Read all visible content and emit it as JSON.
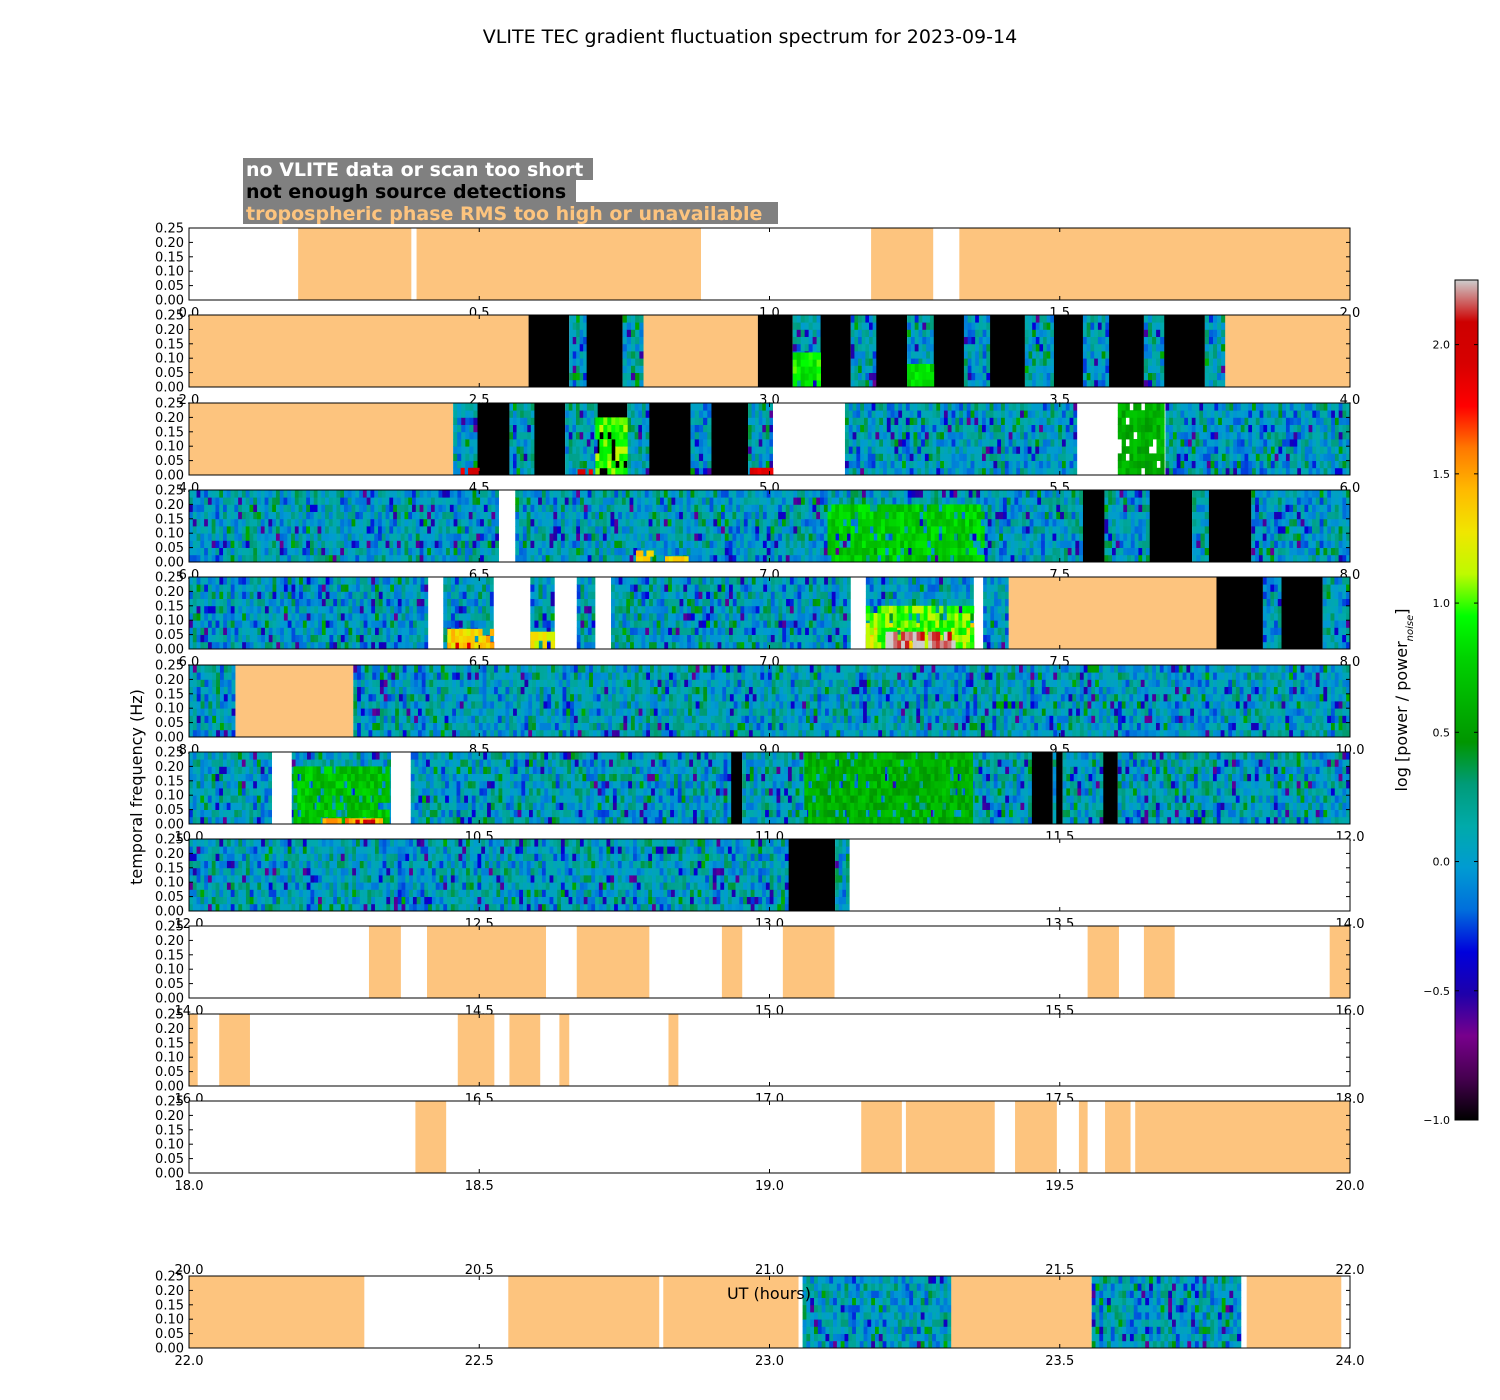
{
  "chart_data": {
    "type": "heatmap",
    "title": "VLITE TEC gradient fluctuation spectrum for 2023-09-14",
    "xlabel": "UT (hours)",
    "ylabel": "temporal frequency (Hz)",
    "colorbar_label": "log [power / power",
    "colorbar_label_sub": "noise",
    "colorbar_label_end": "]",
    "colorbar_range": [
      -1.0,
      2.25
    ],
    "colorbar_ticks": [
      "2.0",
      "1.5",
      "1.0",
      "0.5",
      "0.0",
      "−0.5",
      "−1.0"
    ],
    "colorbar_tick_values": [
      2.0,
      1.5,
      1.0,
      0.5,
      0.0,
      -0.5,
      -1.0
    ],
    "colormap": "nipy_spectral",
    "ylim": [
      0,
      0.25
    ],
    "y_ticks": [
      "0.00",
      "0.05",
      "0.10",
      "0.15",
      "0.20",
      "0.25"
    ],
    "y_tick_values": [
      0,
      0.05,
      0.1,
      0.15,
      0.2,
      0.25
    ],
    "legend": [
      {
        "text": "no VLITE data or scan too short",
        "color": "#ffffff"
      },
      {
        "text": "not enough source detections",
        "color": "#000000"
      },
      {
        "text": "tropospheric phase RMS too high or unavailable",
        "color": "#fdc47e"
      }
    ],
    "flag_colors": {
      "nodata": "#ffffff",
      "nodet": "#000000",
      "tropo": "#fdc47e"
    },
    "panels": [
      {
        "xlim": [
          0,
          2
        ],
        "x_ticks": [
          "0.0",
          "0.5",
          "1.0",
          "1.5",
          "2.0"
        ],
        "segments": [
          [
            "tropo",
            0.188,
            0.383
          ],
          [
            "tropo",
            0.392,
            0.882
          ],
          [
            "tropo",
            1.175,
            1.282
          ],
          [
            "tropo",
            1.327,
            2.0
          ]
        ]
      },
      {
        "xlim": [
          2,
          4
        ],
        "x_ticks": [
          "2.0",
          "2.5",
          "3.0",
          "3.5",
          "4.0"
        ],
        "segments": [
          [
            "tropo",
            2.0,
            2.585
          ],
          [
            "nodet",
            2.585,
            2.655
          ],
          [
            "spec",
            2.655,
            2.685
          ],
          [
            "nodet",
            2.685,
            2.747
          ],
          [
            "spec",
            2.747,
            2.783
          ],
          [
            "tropo",
            2.783,
            2.98
          ],
          [
            "nodet",
            2.98,
            3.04
          ],
          [
            "spec",
            3.04,
            3.088
          ],
          [
            "nodet",
            3.088,
            3.14
          ],
          [
            "spec",
            3.14,
            3.184
          ],
          [
            "nodet",
            3.184,
            3.237
          ],
          [
            "spec",
            3.237,
            3.283
          ],
          [
            "nodet",
            3.283,
            3.335
          ],
          [
            "spec",
            3.335,
            3.38
          ],
          [
            "nodet",
            3.38,
            3.44
          ],
          [
            "spec",
            3.44,
            3.49
          ],
          [
            "nodet",
            3.49,
            3.54
          ],
          [
            "spec",
            3.54,
            3.585
          ],
          [
            "nodet",
            3.585,
            3.645
          ],
          [
            "spec",
            3.645,
            3.68
          ],
          [
            "nodet",
            3.68,
            3.75
          ],
          [
            "spec",
            3.75,
            3.785
          ],
          [
            "tropo",
            3.785,
            4.0
          ]
        ]
      },
      {
        "xlim": [
          4,
          6
        ],
        "x_ticks": [
          "4.0",
          "4.5",
          "5.0",
          "5.5",
          "6.0"
        ],
        "segments": [
          [
            "tropo",
            4.0,
            4.455
          ],
          [
            "spec",
            4.455,
            4.497
          ],
          [
            "nodet",
            4.497,
            4.552
          ],
          [
            "spec",
            4.552,
            4.595
          ],
          [
            "nodet",
            4.595,
            4.648
          ],
          [
            "spec",
            4.648,
            4.704
          ],
          [
            "nodet",
            4.704,
            4.755
          ],
          [
            "spec",
            4.755,
            4.793
          ],
          [
            "nodet",
            4.793,
            4.864
          ],
          [
            "spec",
            4.864,
            4.9
          ],
          [
            "nodet",
            4.9,
            4.963
          ],
          [
            "spec",
            4.963,
            5.006
          ],
          [
            "nodata",
            5.006,
            5.13
          ],
          [
            "spec",
            5.13,
            5.53
          ],
          [
            "nodata",
            5.53,
            5.682
          ],
          [
            "spec",
            5.682,
            6.0
          ]
        ]
      },
      {
        "xlim": [
          6,
          8
        ],
        "x_ticks": [
          "6.0",
          "6.5",
          "7.0",
          "7.5",
          "8.0"
        ],
        "segments": [
          [
            "spec",
            6.0,
            6.534
          ],
          [
            "nodata",
            6.534,
            6.562
          ],
          [
            "spec",
            6.562,
            7.54
          ],
          [
            "nodet",
            7.54,
            7.577
          ],
          [
            "spec",
            7.577,
            7.655
          ],
          [
            "nodet",
            7.655,
            7.728
          ],
          [
            "spec",
            7.728,
            7.757
          ],
          [
            "nodet",
            7.757,
            7.83
          ],
          [
            "spec",
            7.83,
            8.0
          ]
        ]
      },
      {
        "xlim": [
          6,
          8
        ],
        "x_ticks": [
          "6.0",
          "6.5",
          "7.0",
          "7.5",
          "8.0"
        ],
        "segments": [
          [
            "spec",
            6.0,
            6.412
          ],
          [
            "nodata",
            6.412,
            6.438
          ],
          [
            "spec",
            6.438,
            6.525
          ],
          [
            "nodata",
            6.525,
            6.588
          ],
          [
            "spec",
            6.588,
            6.63
          ],
          [
            "nodata",
            6.63,
            6.668
          ],
          [
            "spec",
            6.668,
            6.7
          ],
          [
            "nodata",
            6.7,
            6.727
          ],
          [
            "spec",
            6.727,
            7.14
          ],
          [
            "nodata",
            7.14,
            7.166
          ],
          [
            "spec",
            7.166,
            7.352
          ],
          [
            "nodata",
            7.352,
            7.368
          ],
          [
            "spec",
            7.368,
            7.412
          ],
          [
            "tropo",
            7.412,
            7.77
          ],
          [
            "nodet",
            7.77,
            7.85
          ],
          [
            "spec",
            7.85,
            7.882
          ],
          [
            "nodet",
            7.882,
            7.953
          ],
          [
            "spec",
            7.953,
            8.0
          ]
        ]
      },
      {
        "xlim": [
          8,
          10
        ],
        "x_ticks": [
          "8.0",
          "8.5",
          "9.0",
          "9.5",
          "10.0"
        ],
        "segments": [
          [
            "spec",
            8.0,
            8.08
          ],
          [
            "tropo",
            8.08,
            8.283
          ],
          [
            "spec",
            8.283,
            10.0
          ]
        ]
      },
      {
        "xlim": [
          10,
          12
        ],
        "x_ticks": [
          "10.0",
          "10.5",
          "11.0",
          "11.5",
          "12.0"
        ],
        "segments": [
          [
            "spec",
            10.0,
            10.143
          ],
          [
            "nodata",
            10.143,
            10.177
          ],
          [
            "spec",
            10.177,
            10.348
          ],
          [
            "nodata",
            10.348,
            10.382
          ],
          [
            "spec",
            10.382,
            10.934
          ],
          [
            "nodet",
            10.934,
            10.953
          ],
          [
            "spec",
            10.953,
            11.452
          ],
          [
            "nodet",
            11.452,
            11.488
          ],
          [
            "spec",
            11.488,
            11.494
          ],
          [
            "nodet",
            11.494,
            11.505
          ],
          [
            "spec",
            11.505,
            11.575
          ],
          [
            "nodet",
            11.575,
            11.6
          ],
          [
            "spec",
            11.6,
            12.0
          ]
        ]
      },
      {
        "xlim": [
          12,
          14
        ],
        "x_ticks": [
          "12.0",
          "12.5",
          "13.0",
          "13.5",
          "14.0"
        ],
        "segments": [
          [
            "spec",
            12.0,
            13.033
          ],
          [
            "nodet",
            13.033,
            13.113
          ],
          [
            "spec",
            13.113,
            13.138
          ],
          [
            "nodata",
            13.138,
            14.0
          ]
        ]
      },
      {
        "xlim": [
          14,
          16
        ],
        "x_ticks": [
          "14.0",
          "14.5",
          "15.0",
          "15.5",
          "16.0"
        ],
        "segments": [
          [
            "tropo",
            14.31,
            14.365
          ],
          [
            "tropo",
            14.41,
            14.615
          ],
          [
            "tropo",
            14.668,
            14.793
          ],
          [
            "tropo",
            14.918,
            14.953
          ],
          [
            "tropo",
            15.023,
            15.112
          ],
          [
            "tropo",
            15.548,
            15.602
          ],
          [
            "tropo",
            15.645,
            15.698
          ],
          [
            "tropo",
            15.965,
            16.0
          ]
        ]
      },
      {
        "xlim": [
          16,
          18
        ],
        "x_ticks": [
          "16.0",
          "16.5",
          "17.0",
          "17.5",
          "18.0"
        ],
        "segments": [
          [
            "tropo",
            16.0,
            16.015
          ],
          [
            "tropo",
            16.052,
            16.105
          ],
          [
            "tropo",
            16.463,
            16.526
          ],
          [
            "tropo",
            16.552,
            16.605
          ],
          [
            "tropo",
            16.638,
            16.655
          ],
          [
            "tropo",
            16.826,
            16.843
          ]
        ]
      },
      {
        "xlim": [
          18,
          20
        ],
        "x_ticks": [
          "18.0",
          "18.5",
          "19.0",
          "19.5",
          "20.0"
        ],
        "segments": [
          [
            "tropo",
            18.39,
            18.443
          ],
          [
            "tropo",
            19.158,
            19.228
          ],
          [
            "tropo",
            19.235,
            19.388
          ],
          [
            "tropo",
            19.423,
            19.495
          ],
          [
            "tropo",
            19.533,
            19.548
          ],
          [
            "tropo",
            19.578,
            19.622
          ],
          [
            "tropo",
            19.63,
            20.0
          ]
        ]
      },
      {
        "xlim": [
          22,
          24
        ],
        "x_ticks": [
          "22.0",
          "22.5",
          "23.0",
          "23.5",
          "24.0"
        ],
        "segments": [
          [
            "tropo",
            22.0,
            22.302
          ],
          [
            "tropo",
            22.55,
            22.81
          ],
          [
            "tropo",
            22.817,
            23.05
          ],
          [
            "spec",
            23.057,
            23.313
          ],
          [
            "tropo",
            23.313,
            23.555
          ],
          [
            "spec",
            23.555,
            23.812
          ],
          [
            "tropo",
            23.822,
            23.985
          ]
        ]
      }
    ],
    "extra_x_ticks": [
      {
        "after_panel": 10,
        "labels": [
          "20.0",
          "20.5",
          "21.0",
          "21.5",
          "22.0"
        ]
      }
    ],
    "hotspots": [
      {
        "panel": 2,
        "x0": 4.455,
        "x1": 4.5,
        "y1": 0.025,
        "level": 1.9
      },
      {
        "panel": 2,
        "x0": 4.663,
        "x1": 4.695,
        "y1": 0.02,
        "level": 1.9
      },
      {
        "panel": 2,
        "x0": 4.966,
        "x1": 5.006,
        "y1": 0.025,
        "level": 1.9
      },
      {
        "panel": 2,
        "x0": 4.7,
        "x1": 4.755,
        "y1": 0.2,
        "level": 1.0
      },
      {
        "panel": 3,
        "x0": 6.77,
        "x1": 6.8,
        "y1": 0.04,
        "level": 1.4
      },
      {
        "panel": 3,
        "x0": 6.82,
        "x1": 6.86,
        "y1": 0.02,
        "level": 1.4
      },
      {
        "panel": 3,
        "x0": 7.1,
        "x1": 7.37,
        "y1": 0.2,
        "level": 0.75
      },
      {
        "panel": 4,
        "x0": 6.445,
        "x1": 6.525,
        "y1": 0.025,
        "level": 1.95
      },
      {
        "panel": 4,
        "x0": 6.445,
        "x1": 6.525,
        "y1": 0.07,
        "level": 1.35
      },
      {
        "panel": 4,
        "x0": 6.588,
        "x1": 6.63,
        "y1": 0.06,
        "level": 1.25
      },
      {
        "panel": 4,
        "x0": 7.166,
        "x1": 7.352,
        "y1": 0.025,
        "level": 2.2
      },
      {
        "panel": 4,
        "x0": 7.166,
        "x1": 7.352,
        "y1": 0.05,
        "level": 1.8
      },
      {
        "panel": 4,
        "x0": 7.166,
        "x1": 7.352,
        "y1": 0.09,
        "level": 1.3
      },
      {
        "panel": 4,
        "x0": 7.166,
        "x1": 7.352,
        "y1": 0.15,
        "level": 1.0
      },
      {
        "panel": 4,
        "x0": 7.2,
        "x1": 7.32,
        "y1": 0.06,
        "level": 2.22
      },
      {
        "panel": 6,
        "x0": 10.18,
        "x1": 10.345,
        "y1": 0.2,
        "level": 0.7
      },
      {
        "panel": 6,
        "x0": 10.23,
        "x1": 10.34,
        "y1": 0.02,
        "level": 1.5
      },
      {
        "panel": 6,
        "x0": 10.28,
        "x1": 10.32,
        "y1": 0.015,
        "level": 1.95
      },
      {
        "panel": 6,
        "x0": 11.06,
        "x1": 11.35,
        "y1": 0.25,
        "level": 0.6
      },
      {
        "panel": 1,
        "x0": 3.04,
        "x1": 3.088,
        "y1": 0.12,
        "level": 0.9
      },
      {
        "panel": 1,
        "x0": 3.237,
        "x1": 3.283,
        "y1": 0.08,
        "level": 0.8
      },
      {
        "panel": 2,
        "x0": 5.6,
        "x1": 5.68,
        "y1": 0.25,
        "level": 0.6
      }
    ]
  }
}
